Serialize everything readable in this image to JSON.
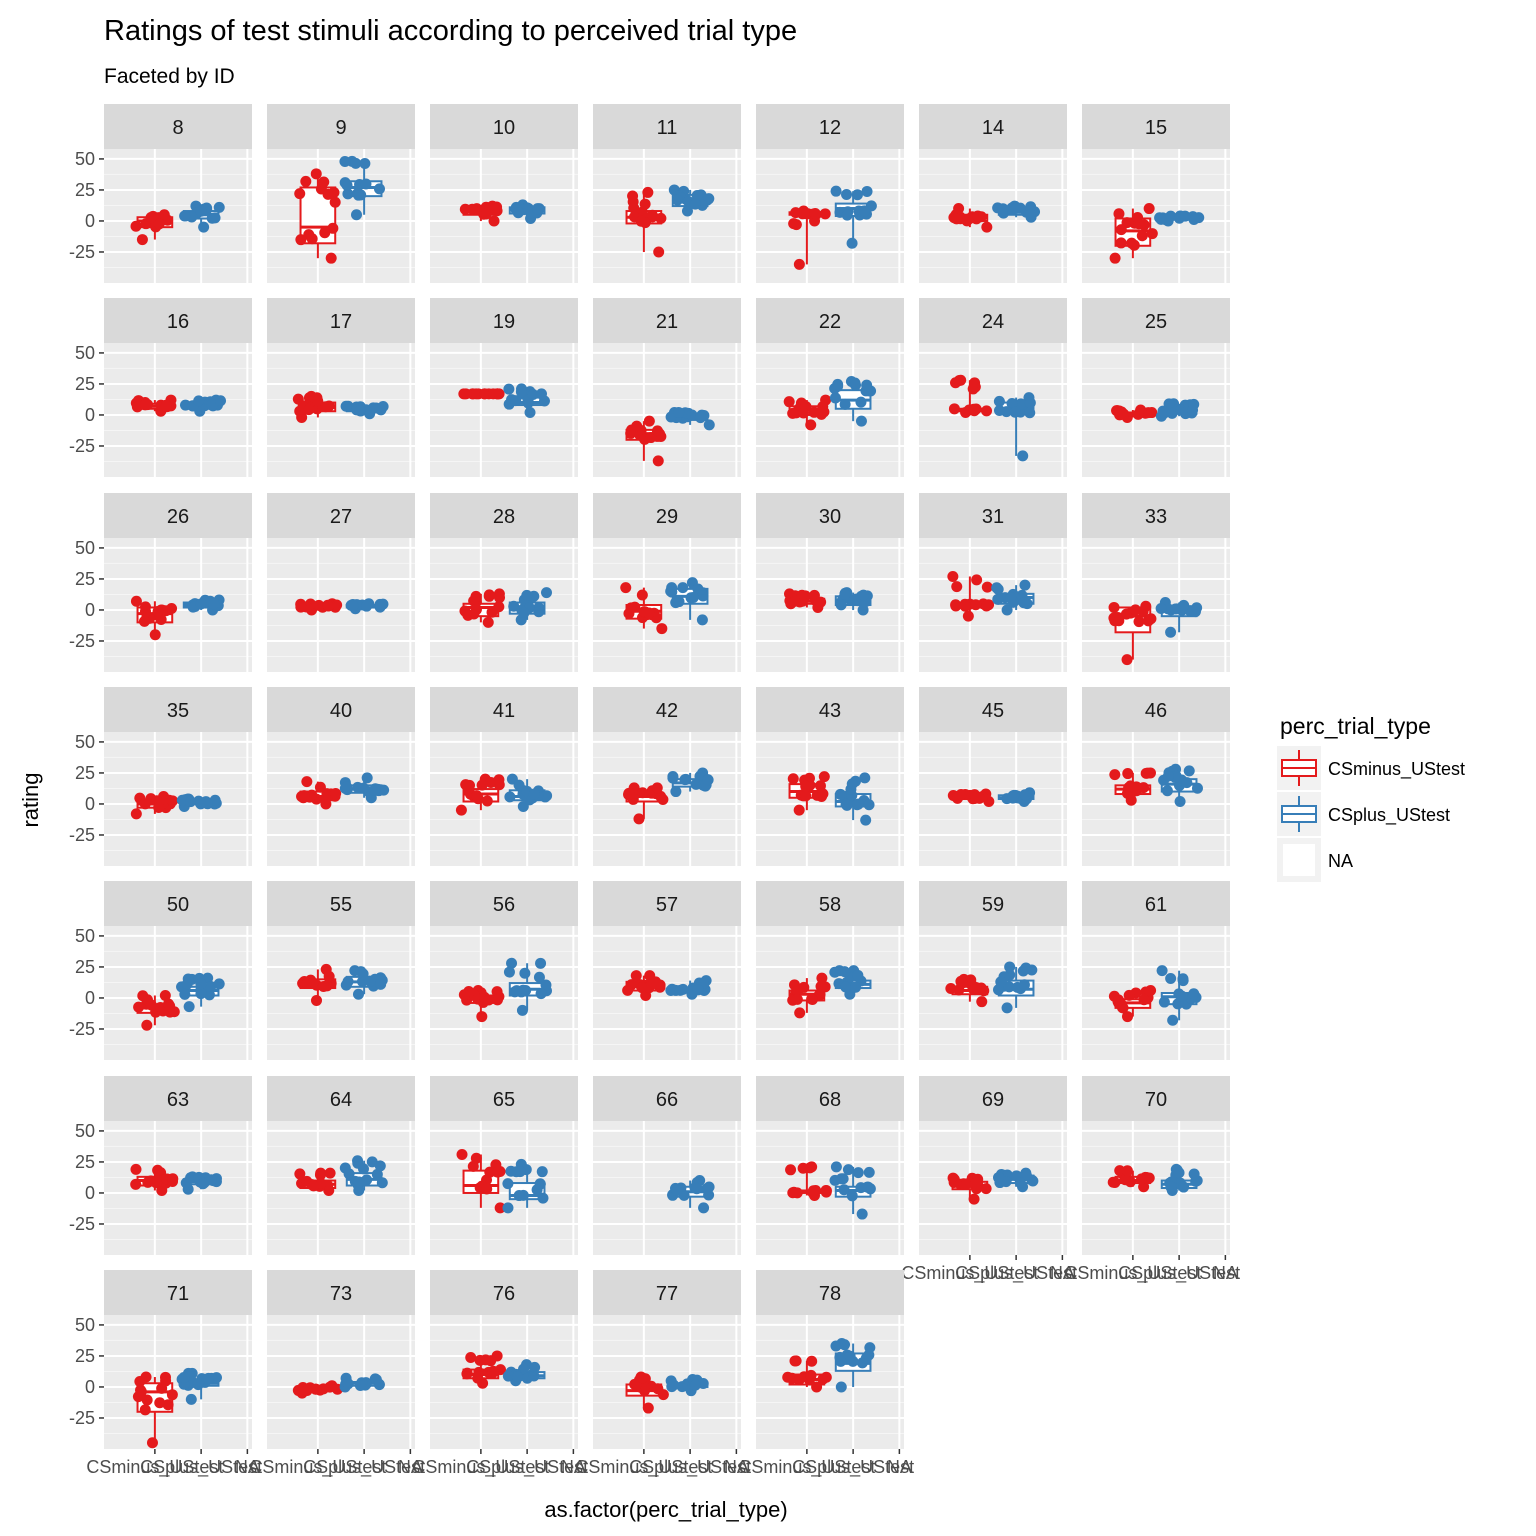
{
  "chart_data": {
    "type": "boxplot",
    "title": "Ratings of test stimuli according to perceived trial type",
    "subtitle": "Faceted by ID",
    "xlabel": "as.factor(perc_trial_type)",
    "ylabel": "rating",
    "ylim": [
      -50,
      58
    ],
    "yticks": [
      -25,
      0,
      25,
      50
    ],
    "categories": [
      "CSminus_UStest",
      "CSplus_UStest",
      "NA"
    ],
    "legend": {
      "title": "perc_trial_type",
      "placement": "right",
      "entries": [
        {
          "name": "CSminus_UStest",
          "color": "#e41a1c"
        },
        {
          "name": "CSplus_UStest",
          "color": "#377eb8"
        },
        {
          "name": "NA",
          "color": "#ffffff"
        }
      ]
    },
    "series": [
      {
        "name": "CSminus_UStest",
        "color": "#e41a1c"
      },
      {
        "name": "CSplus_UStest",
        "color": "#377eb8"
      }
    ],
    "facets": [
      {
        "id": "8",
        "CSminus_UStest": [
          -15,
          -5,
          0,
          3,
          5
        ],
        "CSplus_UStest": [
          -5,
          2,
          5,
          8,
          12
        ]
      },
      {
        "id": "9",
        "CSminus_UStest": [
          -30,
          -18,
          -5,
          27,
          38
        ],
        "CSplus_UStest": [
          5,
          20,
          27,
          32,
          48
        ]
      },
      {
        "id": "10",
        "CSminus_UStest": [
          0,
          5,
          8,
          10,
          12
        ],
        "CSplus_UStest": [
          2,
          6,
          9,
          11,
          13
        ]
      },
      {
        "id": "11",
        "CSminus_UStest": [
          -25,
          -2,
          3,
          8,
          23
        ],
        "CSplus_UStest": [
          8,
          12,
          17,
          21,
          25
        ]
      },
      {
        "id": "12",
        "CSminus_UStest": [
          -35,
          5,
          6,
          7,
          8
        ],
        "CSplus_UStest": [
          -18,
          4,
          10,
          14,
          24
        ]
      },
      {
        "id": "14",
        "CSminus_UStest": [
          -5,
          0,
          3,
          5,
          10
        ],
        "CSplus_UStest": [
          3,
          5,
          7,
          9,
          12
        ]
      },
      {
        "id": "15",
        "CSminus_UStest": [
          -30,
          -20,
          -8,
          2,
          10
        ],
        "CSplus_UStest": [
          0,
          1,
          2,
          3,
          4
        ]
      },
      {
        "id": "16",
        "CSminus_UStest": [
          3,
          5,
          7,
          9,
          12
        ],
        "CSplus_UStest": [
          3,
          5,
          7,
          9,
          12
        ]
      },
      {
        "id": "17",
        "CSminus_UStest": [
          -2,
          3,
          6,
          10,
          15
        ],
        "CSplus_UStest": [
          1,
          3,
          4,
          5,
          7
        ]
      },
      {
        "id": "19",
        "CSminus_UStest": [
          17,
          17,
          17,
          17,
          17
        ],
        "CSplus_UStest": [
          2,
          8,
          10,
          14,
          21
        ]
      },
      {
        "id": "21",
        "CSminus_UStest": [
          -37,
          -20,
          -15,
          -12,
          -5
        ],
        "CSplus_UStest": [
          -8,
          -4,
          -2,
          0,
          2
        ]
      },
      {
        "id": "22",
        "CSminus_UStest": [
          -8,
          0,
          4,
          7,
          12
        ],
        "CSplus_UStest": [
          -5,
          5,
          12,
          20,
          27
        ]
      },
      {
        "id": "24",
        "CSminus_UStest": [
          2,
          3,
          4,
          5,
          28
        ],
        "CSplus_UStest": [
          -33,
          1,
          5,
          10,
          14
        ]
      },
      {
        "id": "25",
        "CSminus_UStest": [
          -2,
          0,
          1,
          2,
          4
        ],
        "CSplus_UStest": [
          -1,
          1,
          2,
          4,
          9
        ]
      },
      {
        "id": "26",
        "CSminus_UStest": [
          -20,
          -10,
          -3,
          2,
          7
        ],
        "CSplus_UStest": [
          0,
          2,
          4,
          6,
          8
        ]
      },
      {
        "id": "27",
        "CSminus_UStest": [
          0,
          2,
          3,
          4,
          5
        ],
        "CSplus_UStest": [
          1,
          2,
          3,
          4,
          5
        ]
      },
      {
        "id": "28",
        "CSminus_UStest": [
          -10,
          -5,
          2,
          5,
          13
        ],
        "CSplus_UStest": [
          -8,
          -3,
          2,
          6,
          14
        ]
      },
      {
        "id": "29",
        "CSminus_UStest": [
          -15,
          -7,
          -1,
          4,
          18
        ],
        "CSplus_UStest": [
          -8,
          5,
          11,
          17,
          22
        ]
      },
      {
        "id": "30",
        "CSminus_UStest": [
          2,
          5,
          7,
          9,
          13
        ],
        "CSplus_UStest": [
          0,
          4,
          8,
          11,
          14
        ]
      },
      {
        "id": "31",
        "CSminus_UStest": [
          -5,
          3,
          4,
          5,
          27
        ],
        "CSplus_UStest": [
          0,
          5,
          10,
          13,
          20
        ]
      },
      {
        "id": "33",
        "CSminus_UStest": [
          -40,
          -18,
          -5,
          2,
          3
        ],
        "CSplus_UStest": [
          -18,
          -5,
          2,
          3,
          6
        ]
      },
      {
        "id": "35",
        "CSminus_UStest": [
          -8,
          -3,
          0,
          3,
          6
        ],
        "CSplus_UStest": [
          -2,
          0,
          1,
          2,
          4
        ]
      },
      {
        "id": "40",
        "CSminus_UStest": [
          0,
          3,
          6,
          10,
          18
        ],
        "CSplus_UStest": [
          5,
          9,
          12,
          15,
          21
        ]
      },
      {
        "id": "41",
        "CSminus_UStest": [
          -5,
          2,
          8,
          12,
          20
        ],
        "CSplus_UStest": [
          -2,
          3,
          6,
          11,
          20
        ]
      },
      {
        "id": "42",
        "CSminus_UStest": [
          -12,
          2,
          6,
          9,
          13
        ],
        "CSplus_UStest": [
          10,
          14,
          17,
          20,
          25
        ]
      },
      {
        "id": "43",
        "CSminus_UStest": [
          -5,
          5,
          10,
          16,
          22
        ],
        "CSplus_UStest": [
          -13,
          -2,
          2,
          8,
          21
        ]
      },
      {
        "id": "45",
        "CSminus_UStest": [
          2,
          4,
          5,
          6,
          8
        ],
        "CSplus_UStest": [
          2,
          4,
          5,
          7,
          9
        ]
      },
      {
        "id": "46",
        "CSminus_UStest": [
          3,
          8,
          12,
          15,
          25
        ],
        "CSplus_UStest": [
          2,
          10,
          16,
          20,
          28
        ]
      },
      {
        "id": "50",
        "CSminus_UStest": [
          -22,
          -12,
          -8,
          -5,
          2
        ],
        "CSplus_UStest": [
          -7,
          2,
          6,
          9,
          16
        ]
      },
      {
        "id": "55",
        "CSminus_UStest": [
          -2,
          8,
          12,
          15,
          23
        ],
        "CSplus_UStest": [
          3,
          9,
          13,
          17,
          22
        ]
      },
      {
        "id": "56",
        "CSminus_UStest": [
          -15,
          -4,
          -1,
          2,
          6
        ],
        "CSplus_UStest": [
          -10,
          2,
          7,
          12,
          28
        ]
      },
      {
        "id": "57",
        "CSminus_UStest": [
          2,
          6,
          10,
          13,
          18
        ],
        "CSplus_UStest": [
          3,
          5,
          6,
          8,
          14
        ]
      },
      {
        "id": "58",
        "CSminus_UStest": [
          -12,
          -2,
          3,
          6,
          16
        ],
        "CSplus_UStest": [
          3,
          8,
          11,
          14,
          22
        ]
      },
      {
        "id": "59",
        "CSminus_UStest": [
          -3,
          3,
          6,
          9,
          15
        ],
        "CSplus_UStest": [
          -8,
          2,
          7,
          14,
          25
        ]
      },
      {
        "id": "61",
        "CSminus_UStest": [
          -15,
          -8,
          -4,
          -1,
          6
        ],
        "CSplus_UStest": [
          -18,
          -5,
          1,
          4,
          22
        ]
      },
      {
        "id": "63",
        "CSminus_UStest": [
          2,
          6,
          10,
          13,
          19
        ],
        "CSplus_UStest": [
          3,
          7,
          9,
          11,
          13
        ]
      },
      {
        "id": "64",
        "CSminus_UStest": [
          2,
          4,
          7,
          10,
          16
        ],
        "CSplus_UStest": [
          2,
          6,
          11,
          16,
          26
        ]
      },
      {
        "id": "65",
        "CSminus_UStest": [
          -12,
          0,
          6,
          18,
          31
        ],
        "CSplus_UStest": [
          -12,
          -5,
          -2,
          8,
          23
        ]
      },
      {
        "id": "66",
        "CSminus_UStest": null,
        "CSplus_UStest": [
          -12,
          -3,
          1,
          5,
          10
        ]
      },
      {
        "id": "68",
        "CSminus_UStest": [
          -2,
          0,
          1,
          2,
          21
        ],
        "CSplus_UStest": [
          -17,
          -3,
          2,
          5,
          21
        ]
      },
      {
        "id": "69",
        "CSminus_UStest": [
          -5,
          3,
          6,
          9,
          12
        ],
        "CSplus_UStest": [
          5,
          8,
          11,
          14,
          16
        ]
      },
      {
        "id": "70",
        "CSminus_UStest": [
          5,
          8,
          10,
          13,
          18
        ],
        "CSplus_UStest": [
          2,
          4,
          7,
          10,
          19
        ]
      },
      {
        "id": "71",
        "CSminus_UStest": [
          -45,
          -20,
          -4,
          3,
          8
        ],
        "CSplus_UStest": [
          -10,
          1,
          3,
          6,
          11
        ]
      },
      {
        "id": "73",
        "CSminus_UStest": [
          -5,
          -3,
          -1,
          0,
          1
        ],
        "CSplus_UStest": [
          0,
          1,
          3,
          4,
          7
        ]
      },
      {
        "id": "76",
        "CSminus_UStest": [
          3,
          7,
          10,
          14,
          25
        ],
        "CSplus_UStest": [
          5,
          7,
          9,
          12,
          18
        ]
      },
      {
        "id": "77",
        "CSminus_UStest": [
          -17,
          -7,
          -3,
          2,
          8
        ],
        "CSplus_UStest": [
          -3,
          0,
          1,
          3,
          6
        ]
      },
      {
        "id": "78",
        "CSminus_UStest": [
          0,
          2,
          6,
          10,
          21
        ],
        "CSplus_UStest": [
          0,
          13,
          19,
          27,
          35
        ]
      }
    ]
  }
}
